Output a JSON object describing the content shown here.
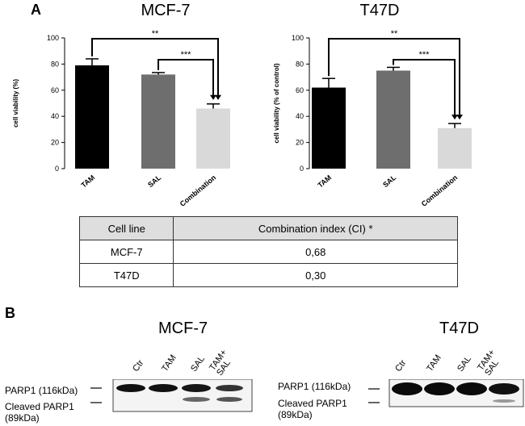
{
  "panel_a_label": "A",
  "panel_b_label": "B",
  "chart_data": [
    {
      "type": "bar",
      "title": "MCF-7",
      "ylabel": "cell viability (%)",
      "xlabel": "",
      "ylim": [
        0,
        100
      ],
      "yticks": [
        "0",
        "20",
        "40",
        "60",
        "80",
        "100"
      ],
      "categories": [
        "TAM",
        "SAL",
        "Combination"
      ],
      "values": [
        79,
        72,
        46
      ],
      "errors": [
        5,
        1.5,
        3.5
      ],
      "colors": [
        "#000000",
        "#6e6e6e",
        "#d9d9d9"
      ],
      "annotations": [
        {
          "from": "TAM",
          "to": "Combination",
          "text": "**"
        },
        {
          "from": "SAL",
          "to": "Combination",
          "text": "***"
        }
      ]
    },
    {
      "type": "bar",
      "title": "T47D",
      "ylabel": "cell viability (% of control)",
      "xlabel": "",
      "ylim": [
        0,
        100
      ],
      "yticks": [
        "0",
        "20",
        "40",
        "60",
        "80",
        "100"
      ],
      "categories": [
        "TAM",
        "SAL",
        "Combination"
      ],
      "values": [
        62,
        75,
        31
      ],
      "errors": [
        7,
        2.5,
        3.5
      ],
      "colors": [
        "#000000",
        "#6e6e6e",
        "#d9d9d9"
      ],
      "annotations": [
        {
          "from": "TAM",
          "to": "Combination",
          "text": "**"
        },
        {
          "from": "SAL",
          "to": "Combination",
          "text": "***"
        }
      ]
    }
  ],
  "table": {
    "headers": [
      "Cell line",
      "Combination index (CI) *"
    ],
    "rows": [
      [
        "MCF-7",
        "0,68"
      ],
      [
        "T47D",
        "0,30"
      ]
    ]
  },
  "blots": {
    "mcf7": {
      "title": "MCF-7",
      "lanes": [
        "Ctr",
        "TAM",
        "SAL",
        "TAM+\nSAL"
      ],
      "band1": "PARP1 (116kDa)",
      "band2": "Cleaved PARP1\n(89kDa)"
    },
    "t47d": {
      "title": "T47D",
      "lanes": [
        "Ctr",
        "TAM",
        "SAL",
        "TAM+\nSAL"
      ],
      "band1": "PARP1 (116kDa)",
      "band2": "Cleaved PARP1\n(89kDa)"
    }
  }
}
